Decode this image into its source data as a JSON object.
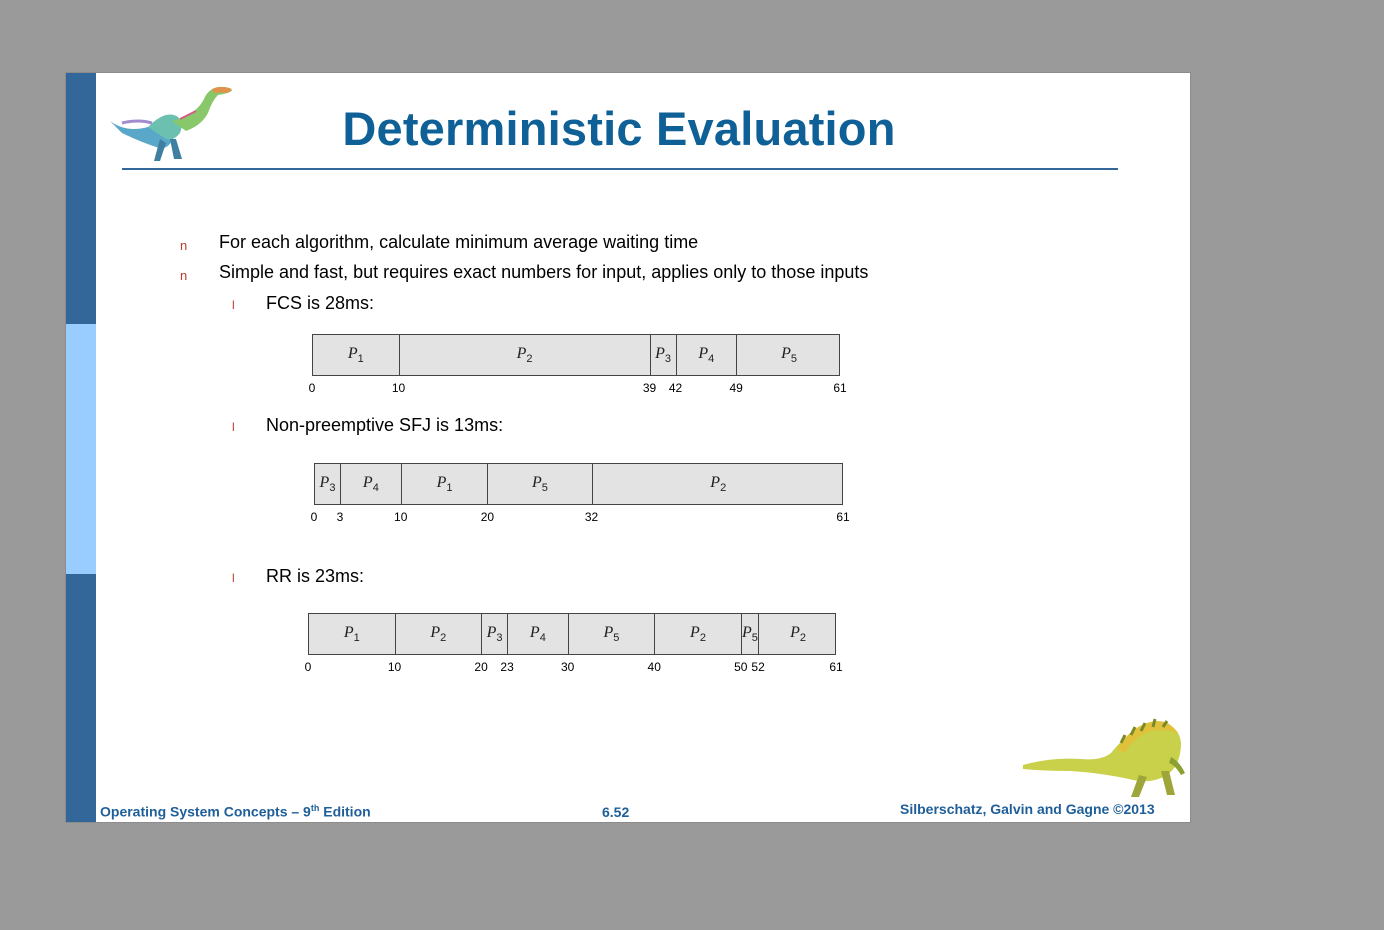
{
  "title": "Deterministic Evaluation",
  "bullets": [
    "For each algorithm, calculate minimum average waiting time",
    "Simple and fast, but requires exact numbers for input, applies only to those inputs"
  ],
  "bullet_marker": "n",
  "sub_marker": "l",
  "sub_bullets": [
    "FCS is 28ms:",
    "Non-preemptive SFJ is 13ms:",
    "RR is 23ms:"
  ],
  "process_letter": "P",
  "chart_data": [
    {
      "type": "gantt",
      "title": "FCS is 28ms:",
      "segments": [
        {
          "p": "1",
          "start": 0,
          "end": 10
        },
        {
          "p": "2",
          "start": 10,
          "end": 39
        },
        {
          "p": "3",
          "start": 39,
          "end": 42
        },
        {
          "p": "4",
          "start": 42,
          "end": 49
        },
        {
          "p": "5",
          "start": 49,
          "end": 61
        }
      ],
      "ticks": [
        0,
        10,
        39,
        42,
        49,
        61
      ]
    },
    {
      "type": "gantt",
      "title": "Non-preemptive SFJ is 13ms:",
      "segments": [
        {
          "p": "3",
          "start": 0,
          "end": 3
        },
        {
          "p": "4",
          "start": 3,
          "end": 10
        },
        {
          "p": "1",
          "start": 10,
          "end": 20
        },
        {
          "p": "5",
          "start": 20,
          "end": 32
        },
        {
          "p": "2",
          "start": 32,
          "end": 61
        }
      ],
      "ticks": [
        0,
        3,
        10,
        20,
        32,
        61
      ]
    },
    {
      "type": "gantt",
      "title": "RR is 23ms:",
      "segments": [
        {
          "p": "1",
          "start": 0,
          "end": 10
        },
        {
          "p": "2",
          "start": 10,
          "end": 20
        },
        {
          "p": "3",
          "start": 20,
          "end": 23
        },
        {
          "p": "4",
          "start": 23,
          "end": 30
        },
        {
          "p": "5",
          "start": 30,
          "end": 40
        },
        {
          "p": "2",
          "start": 40,
          "end": 50
        },
        {
          "p": "5",
          "start": 50,
          "end": 52
        },
        {
          "p": "2",
          "start": 52,
          "end": 61
        }
      ],
      "ticks": [
        0,
        10,
        20,
        23,
        30,
        40,
        50,
        52,
        61
      ]
    }
  ],
  "footer": {
    "left_main": "Operating System Concepts – 9",
    "left_sup": "th",
    "left_tail": " Edition",
    "page": "6.52",
    "right": "Silberschatz, Galvin and Gagne ©2013"
  },
  "colors": {
    "title": "#0e6096",
    "sidebar_dark": "#336699",
    "sidebar_light": "#99ccff",
    "bullet_marker": "#c0392b",
    "bar_fill": "#e3e3e3",
    "footer": "#1f5f99"
  }
}
